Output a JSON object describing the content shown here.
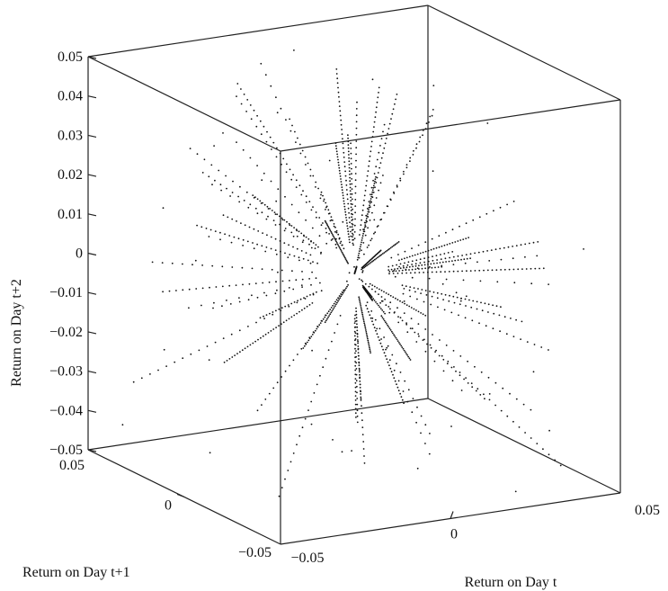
{
  "chart_data": {
    "type": "scatter",
    "projection": "3d",
    "title": "",
    "xlabel": "Return on Day t",
    "ylabel": "Return on Day t+1",
    "zlabel": "Return on Day t+2",
    "xlim": [
      -0.05,
      0.05
    ],
    "ylim": [
      -0.05,
      0.05
    ],
    "zlim": [
      -0.05,
      0.05
    ],
    "x_ticks": [
      "−0.05",
      "0",
      "0.05"
    ],
    "y_ticks": [
      "0.05",
      "0",
      "−0.05"
    ],
    "z_ticks": [
      "0.05",
      "0.04",
      "0.03",
      "0.02",
      "0.01",
      "0",
      "−0.01",
      "−0.02",
      "−0.03",
      "−0.04",
      "−0.05"
    ],
    "grid": false,
    "marker": "dot",
    "point_color": "#111111",
    "description_of_pattern": "",
    "series": [
      {
        "name": "",
        "points": [
          [
            0.002,
            -0.001,
            0.001
          ],
          [
            -0.001,
            0.002,
            -0.002
          ],
          [
            0.003,
            0.001,
            0.0
          ],
          [
            0.0,
            0.0,
            0.002
          ],
          [
            0.001,
            -0.002,
            -0.001
          ],
          [
            -0.002,
            -0.001,
            0.001
          ]
        ]
      }
    ]
  }
}
